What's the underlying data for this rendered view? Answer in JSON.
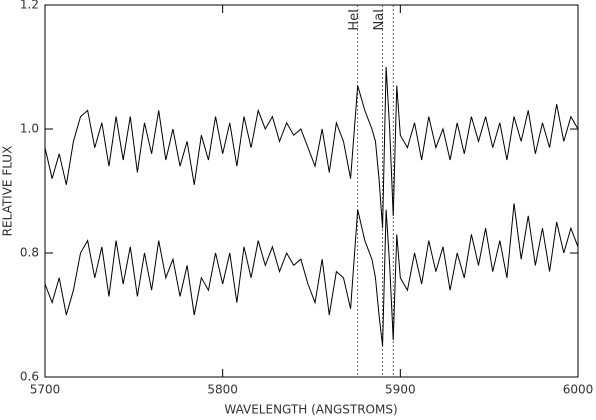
{
  "chart_data": {
    "type": "line",
    "xlabel": "WAVELENGTH (ANGSTROMS)",
    "ylabel": "RELATIVE FLUX",
    "xlim": [
      5700,
      6000
    ],
    "xticks": [
      5700,
      5800,
      5900,
      6000
    ],
    "ylim": [
      0.6,
      1.2
    ],
    "yticks": [
      0.6,
      0.8,
      {
        "value": 1,
        "label": "1.0"
      },
      1.2
    ],
    "x": [
      5700,
      5704,
      5708,
      5712,
      5716,
      5720,
      5724,
      5728,
      5732,
      5736,
      5740,
      5744,
      5748,
      5752,
      5756,
      5760,
      5764,
      5768,
      5772,
      5776,
      5780,
      5784,
      5788,
      5792,
      5796,
      5800,
      5804,
      5808,
      5812,
      5816,
      5820,
      5824,
      5828,
      5832,
      5836,
      5840,
      5844,
      5848,
      5852,
      5856,
      5860,
      5864,
      5868,
      5872,
      5876,
      5880,
      5884,
      5886,
      5888,
      5890,
      5892,
      5894,
      5896,
      5898,
      5900,
      5904,
      5908,
      5912,
      5916,
      5920,
      5924,
      5928,
      5932,
      5936,
      5940,
      5944,
      5948,
      5952,
      5956,
      5960,
      5964,
      5968,
      5972,
      5976,
      5980,
      5984,
      5988,
      5992,
      5996,
      6000
    ],
    "series": [
      {
        "color": "#000000",
        "values": [
          0.97,
          0.92,
          0.96,
          0.91,
          0.98,
          1.02,
          1.03,
          0.97,
          1.01,
          0.94,
          1.02,
          0.95,
          1.02,
          0.93,
          1.01,
          0.96,
          1.03,
          0.95,
          1.0,
          0.94,
          0.98,
          0.91,
          0.99,
          0.95,
          1.02,
          0.96,
          1.01,
          0.94,
          1.02,
          0.97,
          1.03,
          1.0,
          1.02,
          0.98,
          1.01,
          0.99,
          1.0,
          0.97,
          0.94,
          1.0,
          0.93,
          1.01,
          0.98,
          0.92,
          1.07,
          1.03,
          1.0,
          0.98,
          0.92,
          0.84,
          1.1,
          1.0,
          0.86,
          1.07,
          0.99,
          0.97,
          1.01,
          0.95,
          1.02,
          0.97,
          1.0,
          0.95,
          1.01,
          0.96,
          1.02,
          0.98,
          1.02,
          0.97,
          1.01,
          0.95,
          1.02,
          0.98,
          1.03,
          0.96,
          1.01,
          0.97,
          1.04,
          0.98,
          1.02,
          1.0
        ]
      },
      {
        "color": "#000000",
        "values": [
          0.75,
          0.72,
          0.76,
          0.7,
          0.74,
          0.8,
          0.82,
          0.76,
          0.81,
          0.73,
          0.82,
          0.75,
          0.81,
          0.73,
          0.8,
          0.74,
          0.82,
          0.76,
          0.79,
          0.73,
          0.78,
          0.7,
          0.76,
          0.74,
          0.8,
          0.75,
          0.8,
          0.72,
          0.81,
          0.76,
          0.82,
          0.78,
          0.81,
          0.77,
          0.8,
          0.78,
          0.79,
          0.75,
          0.72,
          0.79,
          0.7,
          0.77,
          0.76,
          0.71,
          0.87,
          0.82,
          0.79,
          0.76,
          0.7,
          0.65,
          0.87,
          0.78,
          0.66,
          0.83,
          0.76,
          0.74,
          0.8,
          0.75,
          0.82,
          0.77,
          0.81,
          0.74,
          0.8,
          0.76,
          0.83,
          0.78,
          0.84,
          0.77,
          0.82,
          0.76,
          0.88,
          0.79,
          0.86,
          0.78,
          0.84,
          0.77,
          0.85,
          0.8,
          0.84,
          0.81
        ]
      }
    ],
    "vlines": [
      {
        "x": 5876,
        "label": "HeI"
      },
      {
        "x": 5890,
        "label": "NaI"
      },
      {
        "x": 5896
      }
    ]
  }
}
